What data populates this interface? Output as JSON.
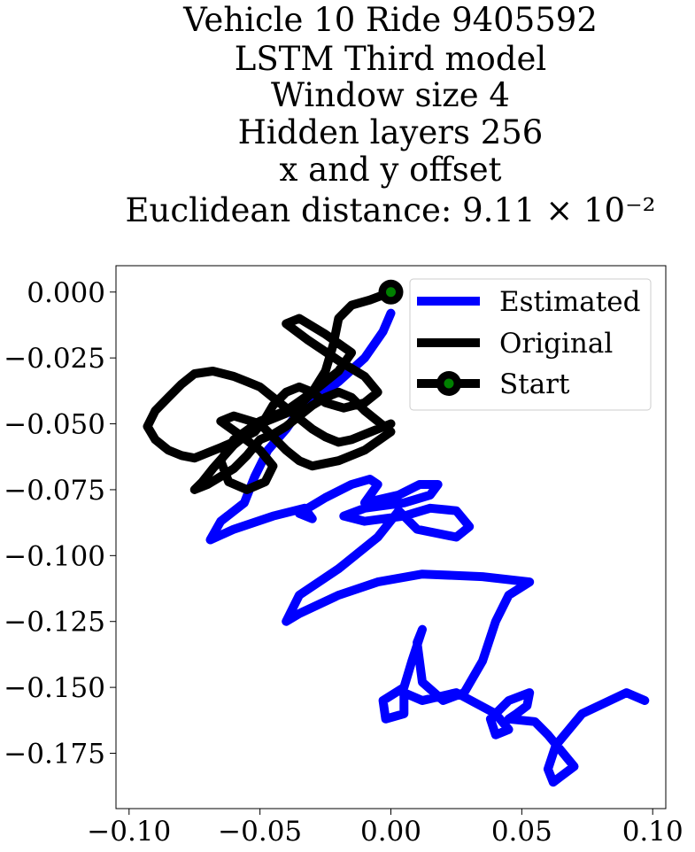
{
  "chart_data": {
    "type": "line",
    "title_lines": [
      "Vehicle 10 Ride 9405592",
      "LSTM Third model",
      "Window size 4",
      "Hidden layers 256",
      "x and y offset",
      "Euclidean distance: 9.11 × 10⁻²"
    ],
    "xlabel": "",
    "ylabel": "",
    "xlim": [
      -0.105,
      0.105
    ],
    "ylim": [
      -0.196,
      0.01
    ],
    "x_ticks": [
      -0.1,
      -0.05,
      0.0,
      0.05,
      0.1
    ],
    "x_tick_labels": [
      "−0.10",
      "−0.05",
      "0.00",
      "0.05",
      "0.10"
    ],
    "y_ticks": [
      0.0,
      -0.025,
      -0.05,
      -0.075,
      -0.1,
      -0.125,
      -0.15,
      -0.175
    ],
    "y_tick_labels": [
      "0.000",
      "−0.025",
      "−0.050",
      "−0.075",
      "−0.100",
      "−0.125",
      "−0.150",
      "−0.175"
    ],
    "grid": false,
    "legend_position": "top-right",
    "legend": [
      "Estimated",
      "Original",
      "Start"
    ],
    "series": [
      {
        "name": "Estimated",
        "color": "#0000ff",
        "x": [
          0.0,
          -0.003,
          -0.01,
          -0.02,
          -0.028,
          -0.035,
          -0.04,
          -0.047,
          -0.052,
          -0.056,
          -0.065,
          -0.069,
          -0.06,
          -0.045,
          -0.033,
          -0.03,
          -0.035,
          -0.025,
          -0.015,
          -0.008,
          -0.005,
          -0.01,
          0.003,
          0.011,
          0.018,
          0.015,
          0.005,
          -0.01,
          -0.018,
          -0.01,
          0.005,
          0.015,
          0.025,
          0.03,
          0.025,
          0.01,
          0.003,
          -0.005,
          -0.02,
          -0.035,
          -0.04,
          -0.035,
          -0.02,
          -0.005,
          0.012,
          0.035,
          0.053,
          0.045,
          0.04,
          0.035,
          0.028,
          0.02,
          0.012,
          0.01,
          0.012,
          0.008,
          0.005,
          -0.003,
          -0.002,
          0.005,
          0.005,
          0.012,
          0.025,
          0.04,
          0.045,
          0.04,
          0.038,
          0.045,
          0.053,
          0.052,
          0.048,
          0.045,
          0.055,
          0.06,
          0.07,
          0.062,
          0.06,
          0.063,
          0.073,
          0.09,
          0.097
        ],
        "y": [
          -0.008,
          -0.015,
          -0.025,
          -0.034,
          -0.04,
          -0.045,
          -0.052,
          -0.06,
          -0.07,
          -0.08,
          -0.087,
          -0.094,
          -0.09,
          -0.085,
          -0.082,
          -0.086,
          -0.084,
          -0.078,
          -0.073,
          -0.071,
          -0.073,
          -0.08,
          -0.077,
          -0.073,
          -0.073,
          -0.077,
          -0.08,
          -0.082,
          -0.085,
          -0.087,
          -0.085,
          -0.082,
          -0.083,
          -0.089,
          -0.093,
          -0.09,
          -0.083,
          -0.093,
          -0.105,
          -0.115,
          -0.125,
          -0.122,
          -0.115,
          -0.11,
          -0.107,
          -0.108,
          -0.11,
          -0.115,
          -0.125,
          -0.14,
          -0.152,
          -0.155,
          -0.148,
          -0.133,
          -0.128,
          -0.14,
          -0.15,
          -0.155,
          -0.162,
          -0.16,
          -0.152,
          -0.155,
          -0.152,
          -0.16,
          -0.166,
          -0.168,
          -0.162,
          -0.155,
          -0.152,
          -0.157,
          -0.16,
          -0.162,
          -0.163,
          -0.168,
          -0.18,
          -0.186,
          -0.181,
          -0.172,
          -0.16,
          -0.152,
          -0.155
        ]
      },
      {
        "name": "Original",
        "color": "#000000",
        "x": [
          0.0,
          -0.008,
          -0.015,
          -0.02,
          -0.022,
          -0.025,
          -0.03,
          -0.035,
          -0.04,
          -0.045,
          -0.05,
          -0.06,
          -0.068,
          -0.072,
          -0.075,
          -0.07,
          -0.06,
          -0.055,
          -0.05,
          -0.045,
          -0.04,
          -0.035,
          -0.03,
          -0.025,
          -0.02,
          -0.015,
          -0.01,
          -0.005,
          0.0,
          -0.01,
          -0.02,
          -0.03,
          -0.035,
          -0.04,
          -0.045,
          -0.05,
          -0.06,
          -0.065,
          -0.058,
          -0.05,
          -0.045,
          -0.048,
          -0.055,
          -0.062,
          -0.065,
          -0.06,
          -0.05,
          -0.04,
          -0.03,
          -0.02,
          -0.015,
          -0.025,
          -0.035,
          -0.04,
          -0.032,
          -0.02,
          -0.01,
          -0.005,
          -0.01,
          -0.018,
          -0.025,
          -0.03,
          -0.035,
          -0.04,
          -0.045,
          -0.048,
          -0.052,
          -0.058,
          -0.065,
          -0.07,
          -0.075,
          -0.08,
          -0.085,
          -0.09,
          -0.093,
          -0.09,
          -0.085,
          -0.08,
          -0.075,
          -0.068,
          -0.06,
          -0.055,
          -0.05,
          -0.045,
          -0.04,
          -0.035,
          -0.03,
          -0.025,
          -0.02,
          -0.015,
          -0.01,
          0.0
        ],
        "y": [
          0.0,
          -0.003,
          -0.005,
          -0.01,
          -0.02,
          -0.03,
          -0.038,
          -0.043,
          -0.046,
          -0.048,
          -0.05,
          -0.058,
          -0.067,
          -0.072,
          -0.075,
          -0.073,
          -0.067,
          -0.062,
          -0.056,
          -0.054,
          -0.051,
          -0.047,
          -0.043,
          -0.04,
          -0.038,
          -0.04,
          -0.045,
          -0.049,
          -0.053,
          -0.06,
          -0.064,
          -0.066,
          -0.064,
          -0.06,
          -0.055,
          -0.05,
          -0.047,
          -0.049,
          -0.054,
          -0.06,
          -0.066,
          -0.072,
          -0.075,
          -0.072,
          -0.064,
          -0.056,
          -0.049,
          -0.045,
          -0.038,
          -0.03,
          -0.023,
          -0.016,
          -0.01,
          -0.012,
          -0.018,
          -0.026,
          -0.032,
          -0.038,
          -0.042,
          -0.044,
          -0.042,
          -0.038,
          -0.036,
          -0.038,
          -0.043,
          -0.048,
          -0.053,
          -0.056,
          -0.059,
          -0.061,
          -0.063,
          -0.062,
          -0.06,
          -0.056,
          -0.051,
          -0.045,
          -0.04,
          -0.035,
          -0.031,
          -0.03,
          -0.032,
          -0.034,
          -0.036,
          -0.04,
          -0.044,
          -0.048,
          -0.052,
          -0.055,
          -0.057,
          -0.056,
          -0.054,
          -0.05
        ]
      }
    ],
    "start_point": {
      "x": 0.0,
      "y": 0.0,
      "outer_color": "#000000",
      "inner_color": "#008000"
    }
  }
}
